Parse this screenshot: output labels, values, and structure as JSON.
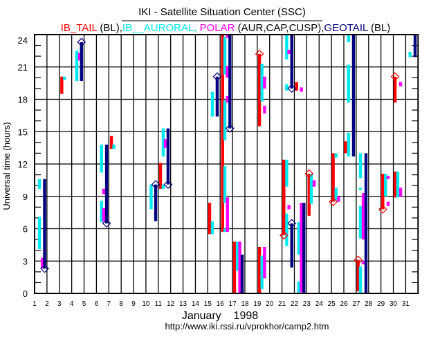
{
  "chart_data": {
    "type": "timeline",
    "title": "IKI - Satellite Situation Center (SSC)",
    "legend": [
      {
        "text": "IB_TAIL",
        "color": "#ff0000"
      },
      {
        "text": " (BL),",
        "color": "#000000"
      },
      {
        "text": "IB__AURORAL,",
        "color": "#00e8f0"
      },
      {
        "text": " POLAR",
        "color": "#ff00ff"
      },
      {
        "text": " (AUR,CAP,CUSP),",
        "color": "#000000"
      },
      {
        "text": "GEOTAIL",
        "color": "#000080"
      },
      {
        "text": " (BL)",
        "color": "#000000"
      }
    ],
    "xlabel": "January    1998",
    "ylabel": "Universal time (hours)",
    "xlim": [
      1,
      32
    ],
    "ylim": [
      0,
      24
    ],
    "x_ticks": [
      "1",
      "2",
      "3",
      "4",
      "5",
      "6",
      "7",
      "8",
      "9",
      "10",
      "11",
      "12",
      "13",
      "14",
      "15",
      "16",
      "17",
      "18",
      "19",
      "20",
      "21",
      "22",
      "23",
      "24",
      "25",
      "26",
      "27",
      "28",
      "29",
      "30",
      "31"
    ],
    "y_ticks": [
      "0",
      "3",
      "6",
      "9",
      "12",
      "15",
      "18",
      "21",
      "24"
    ],
    "grid": true,
    "footer": "http://www.iki.rssi.ru/vprokhor/camp2.htm",
    "series": [
      {
        "name": "IB_TAIL",
        "color": "#ff0000",
        "segments": [
          [
            3.2,
            18.5,
            20.1,
            null
          ],
          [
            7.21,
            13.4,
            14.6,
            null
          ],
          [
            11.18,
            9.7,
            12.1,
            null
          ],
          [
            15.15,
            5.5,
            8.4,
            null
          ],
          [
            16.2,
            5.7,
            24,
            null
          ],
          [
            17.16,
            0,
            4.8,
            null
          ],
          [
            19.18,
            15.5,
            22.2,
            "top"
          ],
          [
            19.18,
            0,
            4.3,
            null
          ],
          [
            21.15,
            5.4,
            12.4,
            "bottom"
          ],
          [
            22.18,
            18.8,
            19.6,
            null
          ],
          [
            23.19,
            7.2,
            11.1,
            "top"
          ],
          [
            25.14,
            8.5,
            13.0,
            "bottom"
          ],
          [
            26.13,
            13.0,
            14.1,
            null
          ],
          [
            27.16,
            0.2,
            3.1,
            "top"
          ],
          [
            29.15,
            7.8,
            11.1,
            "bottom"
          ],
          [
            30.14,
            8.9,
            11.3,
            null
          ],
          [
            30.14,
            17.7,
            20.1,
            "top"
          ]
        ]
      },
      {
        "name": "IB_AURORAL",
        "color": "#00e8f0",
        "segments": [
          [
            1.39,
            4.1,
            7.1,
            null
          ],
          [
            1.39,
            9.7,
            10.6,
            null
          ],
          [
            3.42,
            19.8,
            20.1,
            null
          ],
          [
            4.41,
            19.7,
            22.5,
            null
          ],
          [
            6.41,
            6.6,
            8.6,
            null
          ],
          [
            6.41,
            11.2,
            13.8,
            null
          ],
          [
            7.41,
            13.4,
            13.8,
            null
          ],
          [
            10.42,
            7.8,
            10.1,
            null
          ],
          [
            11.4,
            12.7,
            15.3,
            null
          ],
          [
            11.4,
            9.7,
            10.1,
            null
          ],
          [
            15.37,
            5.5,
            6.7,
            null
          ],
          [
            15.37,
            16.4,
            18.7,
            null
          ],
          [
            16.38,
            20.3,
            23.8,
            null
          ],
          [
            16.38,
            14.2,
            17.9,
            null
          ],
          [
            16.38,
            8.4,
            11.8,
            null
          ],
          [
            16.38,
            5.7,
            6.0,
            null
          ],
          [
            17.39,
            2.1,
            4.8,
            null
          ],
          [
            19.38,
            17.8,
            21.3,
            null
          ],
          [
            19.38,
            0.4,
            3.5,
            null
          ],
          [
            21.38,
            21.7,
            24,
            null
          ],
          [
            21.38,
            18.8,
            19.4,
            null
          ],
          [
            21.38,
            9.9,
            12.4,
            null
          ],
          [
            21.38,
            4.4,
            7.4,
            null
          ],
          [
            22.35,
            3.6,
            6.6,
            null
          ],
          [
            22.35,
            0,
            1.1,
            null
          ],
          [
            23.37,
            8.3,
            11.1,
            null
          ],
          [
            25.37,
            12.6,
            13.0,
            null
          ],
          [
            25.37,
            8.6,
            9.8,
            null
          ],
          [
            26.38,
            23.3,
            24,
            null
          ],
          [
            26.38,
            17.7,
            21.2,
            null
          ],
          [
            26.38,
            12.7,
            14.9,
            null
          ],
          [
            27.34,
            10.7,
            13.0,
            null
          ],
          [
            27.34,
            9.6,
            9.8,
            null
          ],
          [
            27.34,
            5.1,
            8.1,
            null
          ],
          [
            27.34,
            0,
            2.5,
            null
          ],
          [
            29.37,
            9.0,
            11.1,
            null
          ],
          [
            30.36,
            8.9,
            11.3,
            null
          ],
          [
            31.35,
            21.9,
            22.4,
            null
          ]
        ]
      },
      {
        "name": "POLAR",
        "color": "#ff00ff",
        "segments": [
          [
            1.62,
            2.3,
            3.3,
            null
          ],
          [
            4.64,
            21.6,
            22.3,
            null
          ],
          [
            6.59,
            9.2,
            9.7,
            null
          ],
          [
            6.59,
            6.7,
            7.9,
            null
          ],
          [
            11.57,
            13.5,
            14.3,
            null
          ],
          [
            16.59,
            23.7,
            24,
            null
          ],
          [
            16.59,
            20.0,
            21.1,
            null
          ],
          [
            16.59,
            17.7,
            18.3,
            null
          ],
          [
            16.59,
            5.7,
            8.9,
            null
          ],
          [
            17.59,
            0,
            4.8,
            null
          ],
          [
            19.59,
            19.0,
            20.1,
            null
          ],
          [
            19.59,
            16.7,
            17.4,
            null
          ],
          [
            19.59,
            1.4,
            4.3,
            null
          ],
          [
            21.56,
            22.2,
            22.6,
            null
          ],
          [
            21.56,
            7.8,
            8.2,
            null
          ],
          [
            22.57,
            18.7,
            19.1,
            null
          ],
          [
            22.57,
            0.1,
            8.4,
            null
          ],
          [
            23.6,
            9.9,
            10.5,
            null
          ],
          [
            25.57,
            8.5,
            9.0,
            null
          ],
          [
            27.57,
            5.0,
            9.3,
            null
          ],
          [
            27.57,
            2.7,
            3.0,
            null
          ],
          [
            29.58,
            10.6,
            10.9,
            null
          ],
          [
            29.58,
            8.1,
            8.5,
            null
          ],
          [
            30.59,
            9.0,
            9.8,
            null
          ],
          [
            30.59,
            19.2,
            19.6,
            null
          ]
        ]
      },
      {
        "name": "GEOTAIL",
        "color": "#000080",
        "segments": [
          [
            1.81,
            2.3,
            10.6,
            "bottom"
          ],
          [
            4.79,
            19.7,
            23.3,
            "top"
          ],
          [
            6.82,
            6.5,
            13.8,
            "bottom"
          ],
          [
            10.79,
            6.7,
            10.1,
            "top"
          ],
          [
            11.79,
            10.1,
            15.3,
            "bottom"
          ],
          [
            15.76,
            16.4,
            20.1,
            "top"
          ],
          [
            16.79,
            15.3,
            24,
            "bottom"
          ],
          [
            17.78,
            0,
            3.6,
            null
          ],
          [
            21.79,
            19.0,
            24,
            "bottom"
          ],
          [
            21.79,
            2.4,
            6.5,
            "top"
          ],
          [
            22.77,
            0,
            8.4,
            null
          ],
          [
            26.78,
            12.7,
            24,
            null
          ],
          [
            27.79,
            0,
            13.0,
            null
          ],
          [
            31.76,
            21.9,
            24,
            null
          ]
        ]
      }
    ]
  }
}
